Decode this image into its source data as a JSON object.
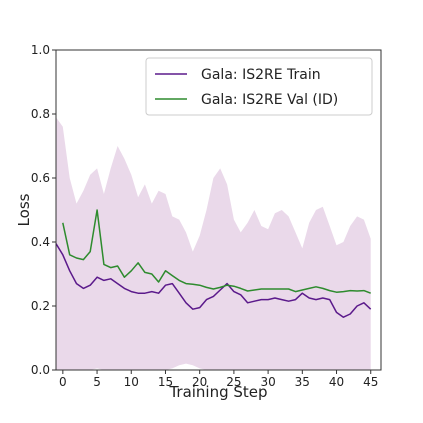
{
  "chart_data": {
    "type": "line",
    "title": "",
    "xlabel": "Training Step",
    "ylabel": "Loss",
    "xlim": [
      -1,
      46.5
    ],
    "ylim": [
      0.0,
      1.0
    ],
    "xticks": [
      0,
      5,
      10,
      15,
      20,
      25,
      30,
      35,
      40,
      45
    ],
    "yticks": [
      0.0,
      0.2,
      0.4,
      0.6,
      0.8,
      1.0
    ],
    "legend_position": "top-right",
    "grid": false,
    "series": [
      {
        "name": "Gala: IS2RE Train",
        "color": "#5b1a8b",
        "x": [
          -1,
          0,
          1,
          2,
          3,
          4,
          5,
          6,
          7,
          8,
          9,
          10,
          11,
          12,
          13,
          14,
          15,
          16,
          17,
          18,
          19,
          20,
          21,
          22,
          23,
          24,
          25,
          26,
          27,
          28,
          29,
          30,
          31,
          32,
          33,
          34,
          35,
          36,
          37,
          38,
          39,
          40,
          41,
          42,
          43,
          44,
          45
        ],
        "y": [
          0.395,
          0.36,
          0.31,
          0.27,
          0.255,
          0.265,
          0.29,
          0.28,
          0.285,
          0.27,
          0.255,
          0.245,
          0.24,
          0.24,
          0.245,
          0.24,
          0.265,
          0.27,
          0.24,
          0.21,
          0.19,
          0.195,
          0.22,
          0.23,
          0.25,
          0.27,
          0.245,
          0.235,
          0.21,
          0.215,
          0.22,
          0.22,
          0.225,
          0.22,
          0.215,
          0.22,
          0.24,
          0.225,
          0.22,
          0.225,
          0.22,
          0.18,
          0.165,
          0.175,
          0.2,
          0.21,
          0.19
        ]
      },
      {
        "name": "Gala: IS2RE Val (ID)",
        "color": "#2e8b2e",
        "x": [
          0,
          1,
          2,
          3,
          4,
          5,
          6,
          7,
          8,
          9,
          10,
          11,
          12,
          13,
          14,
          15,
          16,
          17,
          18,
          19,
          20,
          21,
          22,
          23,
          24,
          25,
          26,
          27,
          28,
          29,
          30,
          31,
          32,
          33,
          34,
          35,
          36,
          37,
          38,
          39,
          40,
          41,
          42,
          43,
          44,
          45
        ],
        "y": [
          0.46,
          0.36,
          0.35,
          0.345,
          0.37,
          0.5,
          0.33,
          0.32,
          0.325,
          0.29,
          0.31,
          0.335,
          0.305,
          0.3,
          0.275,
          0.31,
          0.295,
          0.28,
          0.27,
          0.268,
          0.265,
          0.258,
          0.253,
          0.258,
          0.265,
          0.262,
          0.255,
          0.247,
          0.25,
          0.253,
          0.253,
          0.253,
          0.253,
          0.253,
          0.245,
          0.25,
          0.255,
          0.26,
          0.255,
          0.248,
          0.243,
          0.245,
          0.248,
          0.247,
          0.248,
          0.24
        ]
      }
    ],
    "band": {
      "color": "#ead9ea",
      "x": [
        -1,
        0,
        1,
        2,
        3,
        4,
        5,
        6,
        7,
        8,
        9,
        10,
        11,
        12,
        13,
        14,
        15,
        16,
        17,
        18,
        19,
        20,
        21,
        22,
        23,
        24,
        25,
        26,
        27,
        28,
        29,
        30,
        31,
        32,
        33,
        34,
        35,
        36,
        37,
        38,
        39,
        40,
        41,
        42,
        43,
        44,
        45
      ],
      "upper": [
        0.79,
        0.76,
        0.6,
        0.52,
        0.56,
        0.61,
        0.63,
        0.55,
        0.63,
        0.7,
        0.66,
        0.61,
        0.54,
        0.58,
        0.52,
        0.56,
        0.55,
        0.48,
        0.47,
        0.43,
        0.37,
        0.42,
        0.5,
        0.6,
        0.63,
        0.58,
        0.47,
        0.43,
        0.46,
        0.5,
        0.45,
        0.44,
        0.49,
        0.5,
        0.48,
        0.43,
        0.38,
        0.46,
        0.5,
        0.51,
        0.45,
        0.39,
        0.4,
        0.45,
        0.48,
        0.47,
        0.41
      ],
      "lower": [
        0.0,
        0.0,
        0.0,
        0.0,
        0.0,
        0.0,
        0.005,
        0.0,
        0.0,
        0.0,
        0.0,
        0.0,
        0.0,
        0.0,
        0.0,
        0.0,
        0.0,
        0.005,
        0.015,
        0.02,
        0.015,
        0.005,
        0.0,
        0.0,
        0.0,
        0.0,
        0.0,
        0.0,
        0.0,
        0.0,
        0.0,
        0.0,
        0.0,
        0.0,
        0.0,
        0.0,
        0.0,
        0.0,
        0.0,
        0.0,
        0.0,
        0.0,
        0.0,
        0.0,
        0.0,
        0.0,
        0.0
      ]
    }
  }
}
